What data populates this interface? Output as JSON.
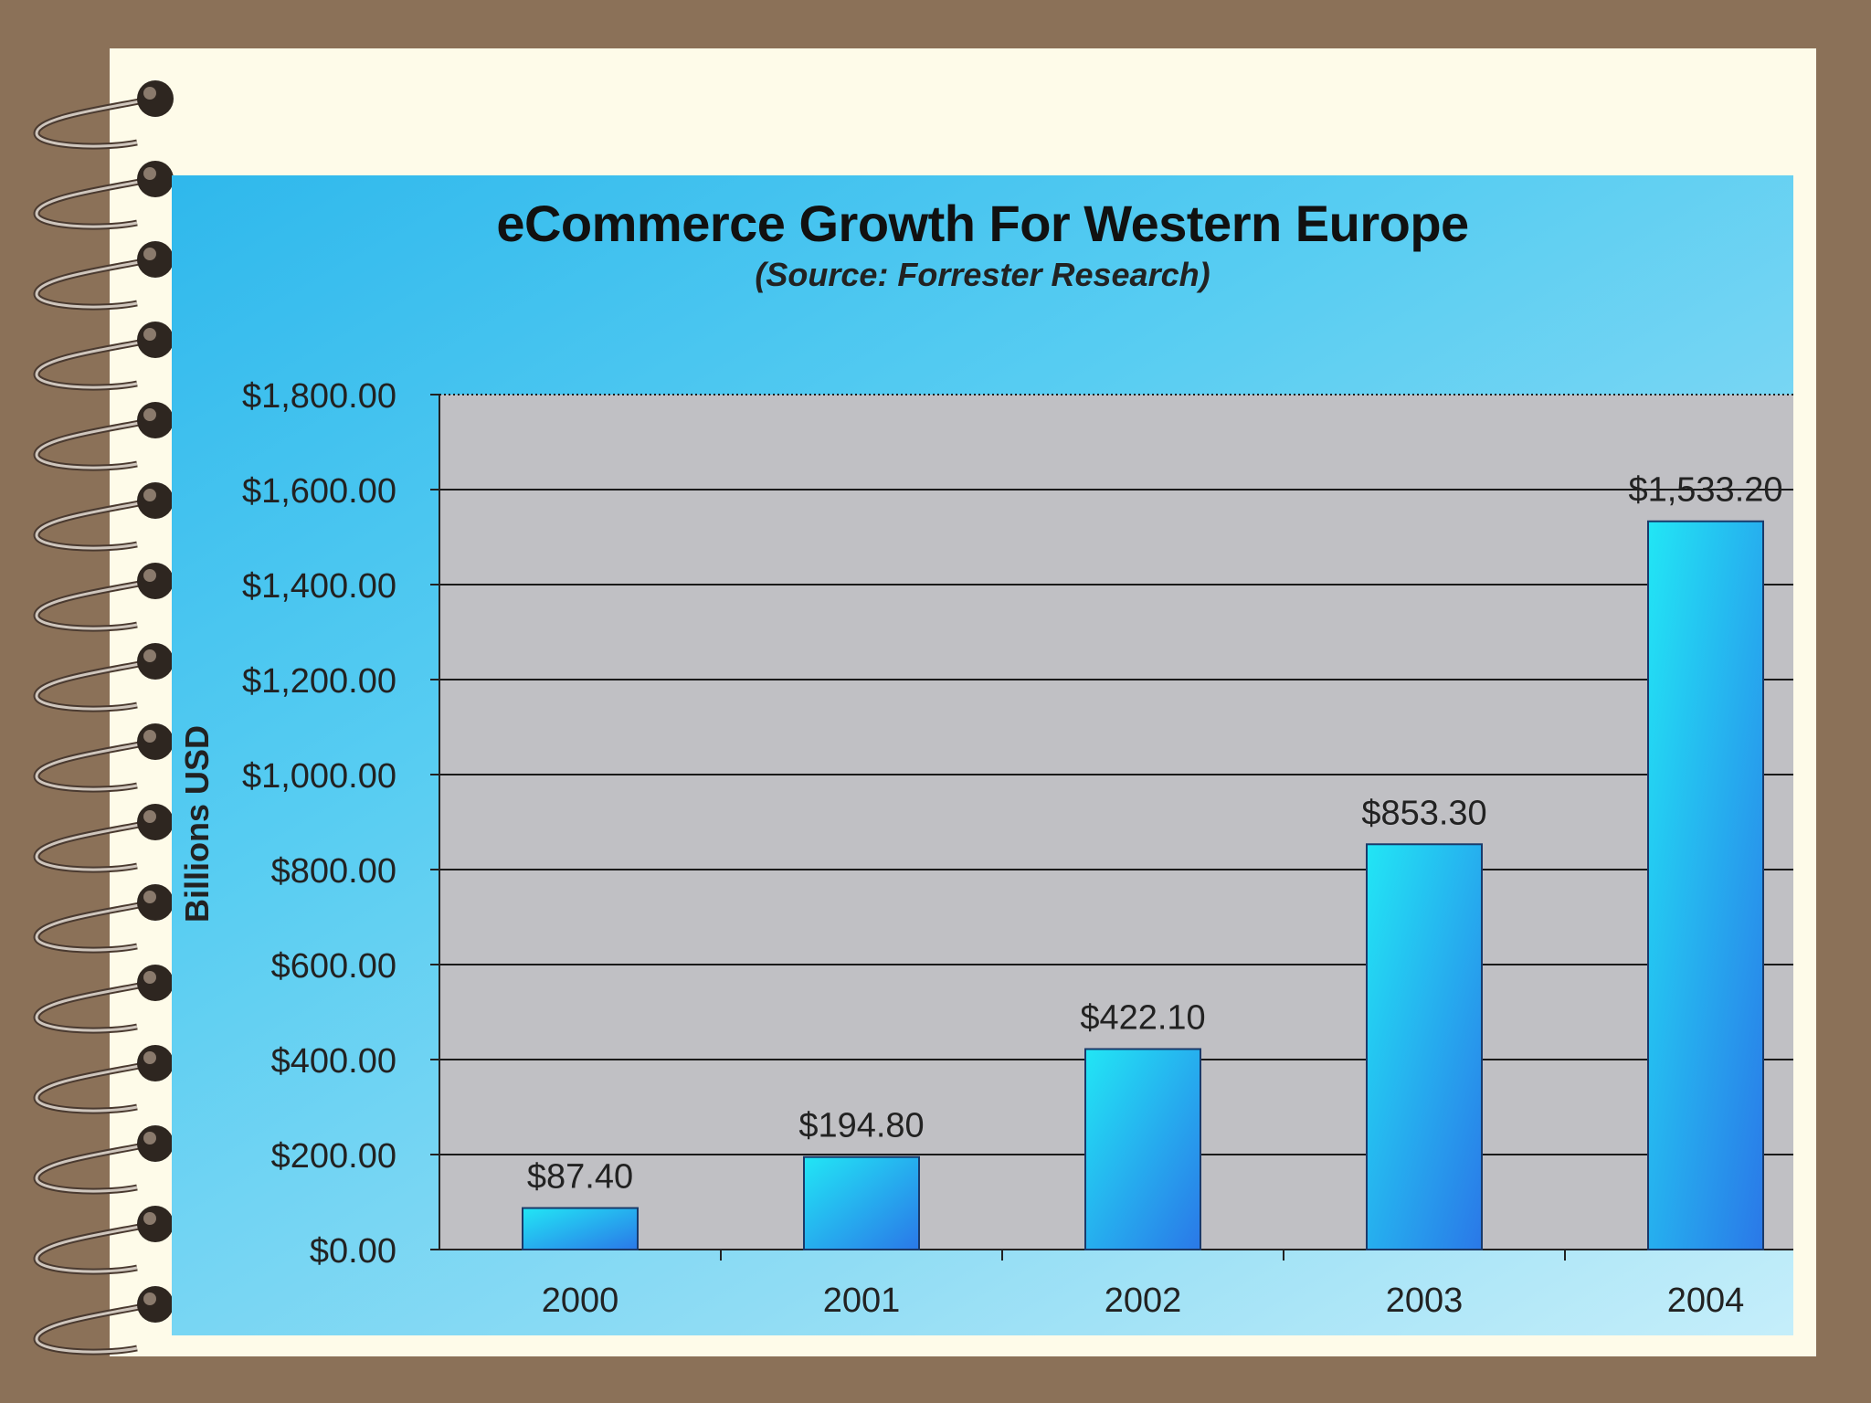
{
  "chart_data": {
    "type": "bar",
    "title": "eCommerce Growth For Western Europe",
    "subtitle": "(Source: Forrester Research)",
    "xlabel": "",
    "ylabel": "Billions USD",
    "categories": [
      "2000",
      "2001",
      "2002",
      "2003",
      "2004"
    ],
    "values": [
      87.4,
      194.8,
      422.1,
      853.3,
      1533.2
    ],
    "value_labels": [
      "$87.40",
      "$194.80",
      "$422.10",
      "$853.30",
      "$1,533.20"
    ],
    "ylim": [
      0,
      1800
    ],
    "yticks": [
      0,
      200,
      400,
      600,
      800,
      1000,
      1200,
      1400,
      1600,
      1800
    ],
    "ytick_labels": [
      "$0.00",
      "$200.00",
      "$400.00",
      "$600.00",
      "$800.00",
      "$1,000.00",
      "$1,200.00",
      "$1,400.00",
      "$1,600.00",
      "$1,800.00"
    ],
    "grid": true,
    "legend": "none",
    "colors": {
      "bar_light": "#22e6f5",
      "bar_dark": "#2a78e8",
      "plot_bg": "#c0c0c4",
      "gridline": "#1a1a1a",
      "background": "#8b7158",
      "paper": "#fefbe9"
    }
  }
}
